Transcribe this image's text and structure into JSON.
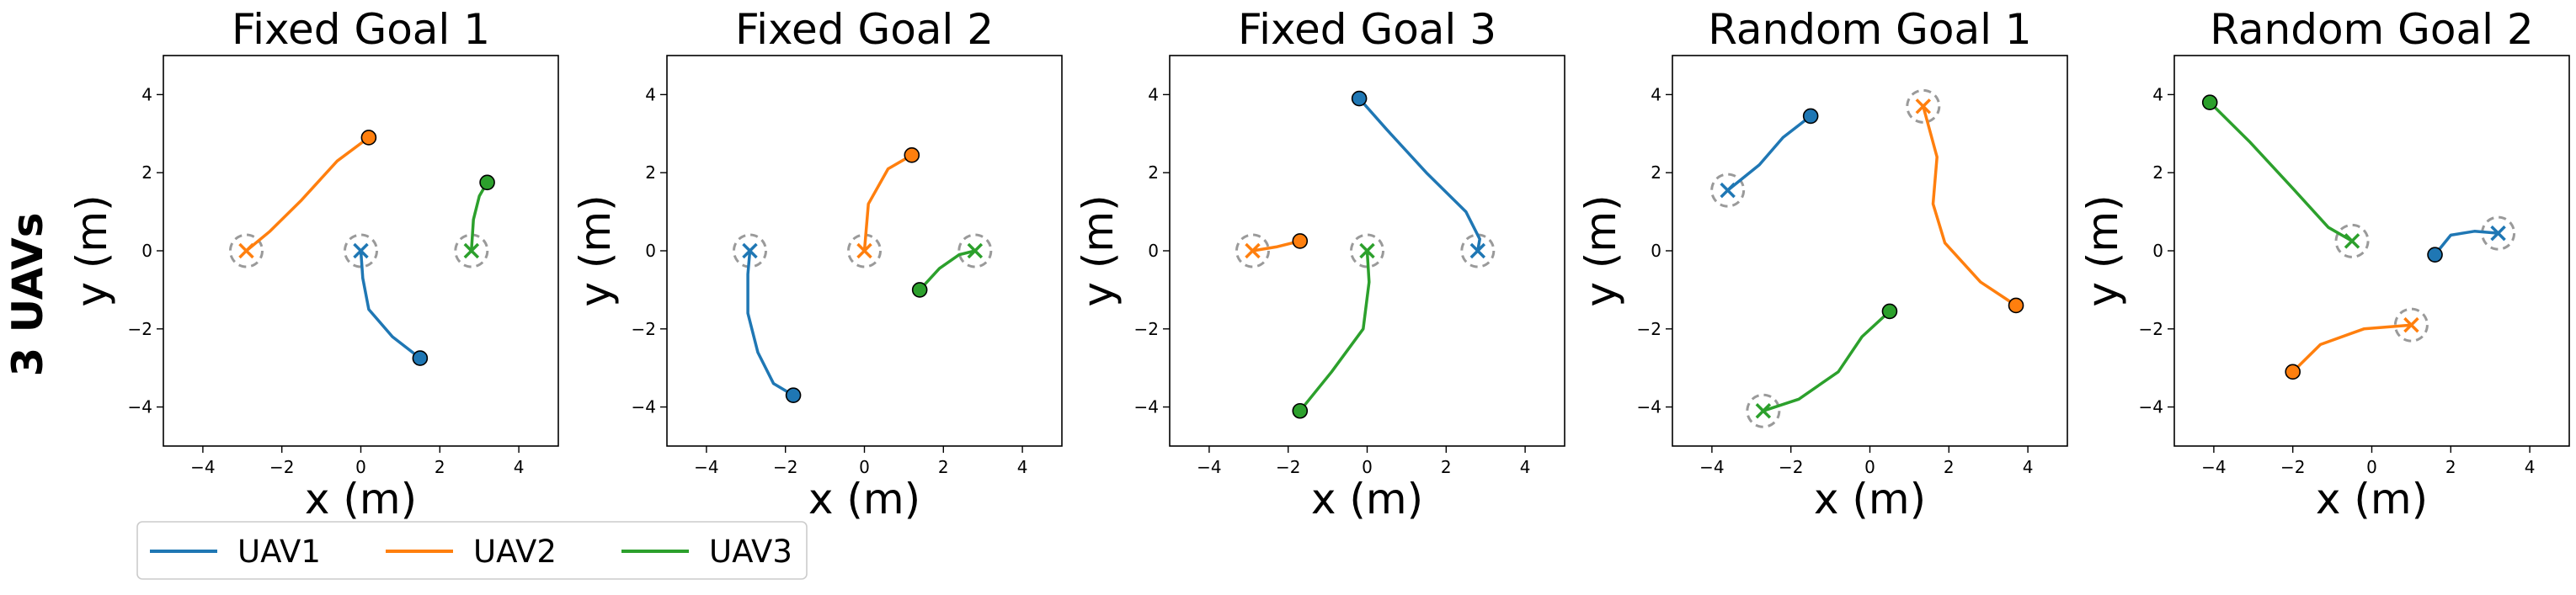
{
  "row_label": "3 UAVs",
  "legend": [
    {
      "name": "UAV1",
      "color": "#1f77b4"
    },
    {
      "name": "UAV2",
      "color": "#ff7f0e"
    },
    {
      "name": "UAV3",
      "color": "#2ca02c"
    }
  ],
  "chart_data": [
    {
      "type": "line",
      "title": "Fixed Goal 1",
      "xlabel": "x (m)",
      "ylabel": "y (m)",
      "xlim": [
        -5,
        5
      ],
      "ylim": [
        -5,
        5
      ],
      "xticks": [
        -4,
        -2,
        0,
        2,
        4
      ],
      "yticks": [
        -4,
        -2,
        0,
        2,
        4
      ],
      "grid": false,
      "series": [
        {
          "name": "UAV1",
          "start": [
            1.5,
            -2.75
          ],
          "goal": [
            0,
            0
          ],
          "path": [
            [
              1.5,
              -2.75
            ],
            [
              0.8,
              -2.2
            ],
            [
              0.2,
              -1.5
            ],
            [
              0.05,
              -0.7
            ],
            [
              0,
              0
            ]
          ]
        },
        {
          "name": "UAV2",
          "start": [
            0.2,
            2.9
          ],
          "goal": [
            -2.9,
            0
          ],
          "path": [
            [
              0.2,
              2.9
            ],
            [
              -0.6,
              2.3
            ],
            [
              -1.5,
              1.3
            ],
            [
              -2.3,
              0.5
            ],
            [
              -2.9,
              0
            ]
          ]
        },
        {
          "name": "UAV3",
          "start": [
            3.2,
            1.75
          ],
          "goal": [
            2.8,
            0
          ],
          "path": [
            [
              3.2,
              1.75
            ],
            [
              3.0,
              1.4
            ],
            [
              2.85,
              0.8
            ],
            [
              2.8,
              0
            ]
          ]
        }
      ]
    },
    {
      "type": "line",
      "title": "Fixed Goal 2",
      "xlabel": "x (m)",
      "ylabel": "y (m)",
      "xlim": [
        -5,
        5
      ],
      "ylim": [
        -5,
        5
      ],
      "xticks": [
        -4,
        -2,
        0,
        2,
        4
      ],
      "yticks": [
        -4,
        -2,
        0,
        2,
        4
      ],
      "grid": false,
      "series": [
        {
          "name": "UAV1",
          "start": [
            -1.8,
            -3.7
          ],
          "goal": [
            -2.9,
            0
          ],
          "path": [
            [
              -1.8,
              -3.7
            ],
            [
              -2.3,
              -3.4
            ],
            [
              -2.7,
              -2.6
            ],
            [
              -2.95,
              -1.6
            ],
            [
              -2.95,
              -0.6
            ],
            [
              -2.9,
              0
            ]
          ]
        },
        {
          "name": "UAV2",
          "start": [
            1.2,
            2.45
          ],
          "goal": [
            0,
            0
          ],
          "path": [
            [
              1.2,
              2.45
            ],
            [
              0.6,
              2.1
            ],
            [
              0.1,
              1.2
            ],
            [
              0,
              0
            ]
          ]
        },
        {
          "name": "UAV3",
          "start": [
            1.4,
            -1.0
          ],
          "goal": [
            2.8,
            0
          ],
          "path": [
            [
              1.4,
              -1.0
            ],
            [
              1.9,
              -0.45
            ],
            [
              2.4,
              -0.1
            ],
            [
              2.8,
              0
            ]
          ]
        }
      ]
    },
    {
      "type": "line",
      "title": "Fixed Goal 3",
      "xlabel": "x (m)",
      "ylabel": "y (m)",
      "xlim": [
        -5,
        5
      ],
      "ylim": [
        -5,
        5
      ],
      "xticks": [
        -4,
        -2,
        0,
        2,
        4
      ],
      "yticks": [
        -4,
        -2,
        0,
        2,
        4
      ],
      "grid": false,
      "series": [
        {
          "name": "UAV1",
          "start": [
            -0.2,
            3.9
          ],
          "goal": [
            2.8,
            0
          ],
          "path": [
            [
              -0.2,
              3.9
            ],
            [
              0.5,
              3.1
            ],
            [
              1.5,
              2.0
            ],
            [
              2.5,
              1.0
            ],
            [
              2.85,
              0.3
            ],
            [
              2.8,
              0
            ]
          ]
        },
        {
          "name": "UAV2",
          "start": [
            -1.7,
            0.25
          ],
          "goal": [
            -2.9,
            0
          ],
          "path": [
            [
              -1.7,
              0.25
            ],
            [
              -2.3,
              0.1
            ],
            [
              -2.9,
              0
            ]
          ]
        },
        {
          "name": "UAV3",
          "start": [
            -1.7,
            -4.1
          ],
          "goal": [
            0,
            0
          ],
          "path": [
            [
              -1.7,
              -4.1
            ],
            [
              -0.9,
              -3.1
            ],
            [
              -0.1,
              -2.0
            ],
            [
              0.05,
              -0.8
            ],
            [
              0,
              0
            ]
          ]
        }
      ]
    },
    {
      "type": "line",
      "title": "Random Goal 1",
      "xlabel": "x (m)",
      "ylabel": "y (m)",
      "xlim": [
        -5,
        5
      ],
      "ylim": [
        -5,
        5
      ],
      "xticks": [
        -4,
        -2,
        0,
        2,
        4
      ],
      "yticks": [
        -4,
        -2,
        0,
        2,
        4
      ],
      "grid": false,
      "series": [
        {
          "name": "UAV1",
          "start": [
            -1.5,
            3.45
          ],
          "goal": [
            -3.6,
            1.55
          ],
          "path": [
            [
              -1.5,
              3.45
            ],
            [
              -2.2,
              2.9
            ],
            [
              -2.8,
              2.2
            ],
            [
              -3.6,
              1.55
            ]
          ]
        },
        {
          "name": "UAV2",
          "start": [
            3.7,
            -1.4
          ],
          "goal": [
            1.35,
            3.7
          ],
          "path": [
            [
              3.7,
              -1.4
            ],
            [
              2.8,
              -0.8
            ],
            [
              1.9,
              0.2
            ],
            [
              1.6,
              1.2
            ],
            [
              1.7,
              2.4
            ],
            [
              1.35,
              3.7
            ]
          ]
        },
        {
          "name": "UAV3",
          "start": [
            0.5,
            -1.55
          ],
          "goal": [
            -2.7,
            -4.1
          ],
          "path": [
            [
              0.5,
              -1.55
            ],
            [
              -0.2,
              -2.2
            ],
            [
              -0.8,
              -3.1
            ],
            [
              -1.8,
              -3.8
            ],
            [
              -2.7,
              -4.1
            ]
          ]
        }
      ]
    },
    {
      "type": "line",
      "title": "Random Goal 2",
      "xlabel": "x (m)",
      "ylabel": "y (m)",
      "xlim": [
        -5,
        5
      ],
      "ylim": [
        -5,
        5
      ],
      "xticks": [
        -4,
        -2,
        0,
        2,
        4
      ],
      "yticks": [
        -4,
        -2,
        0,
        2,
        4
      ],
      "grid": false,
      "series": [
        {
          "name": "UAV1",
          "start": [
            1.6,
            -0.1
          ],
          "goal": [
            3.2,
            0.45
          ],
          "path": [
            [
              1.6,
              -0.1
            ],
            [
              2.0,
              0.4
            ],
            [
              2.6,
              0.5
            ],
            [
              3.2,
              0.45
            ]
          ]
        },
        {
          "name": "UAV2",
          "start": [
            -2.0,
            -3.1
          ],
          "goal": [
            1.0,
            -1.9
          ],
          "path": [
            [
              -2.0,
              -3.1
            ],
            [
              -1.3,
              -2.4
            ],
            [
              -0.2,
              -2.0
            ],
            [
              1.0,
              -1.9
            ]
          ]
        },
        {
          "name": "UAV3",
          "start": [
            -4.1,
            3.8
          ],
          "goal": [
            -0.5,
            0.25
          ],
          "path": [
            [
              -4.1,
              3.8
            ],
            [
              -3.1,
              2.8
            ],
            [
              -2.0,
              1.6
            ],
            [
              -1.1,
              0.6
            ],
            [
              -0.5,
              0.25
            ]
          ]
        }
      ]
    }
  ]
}
